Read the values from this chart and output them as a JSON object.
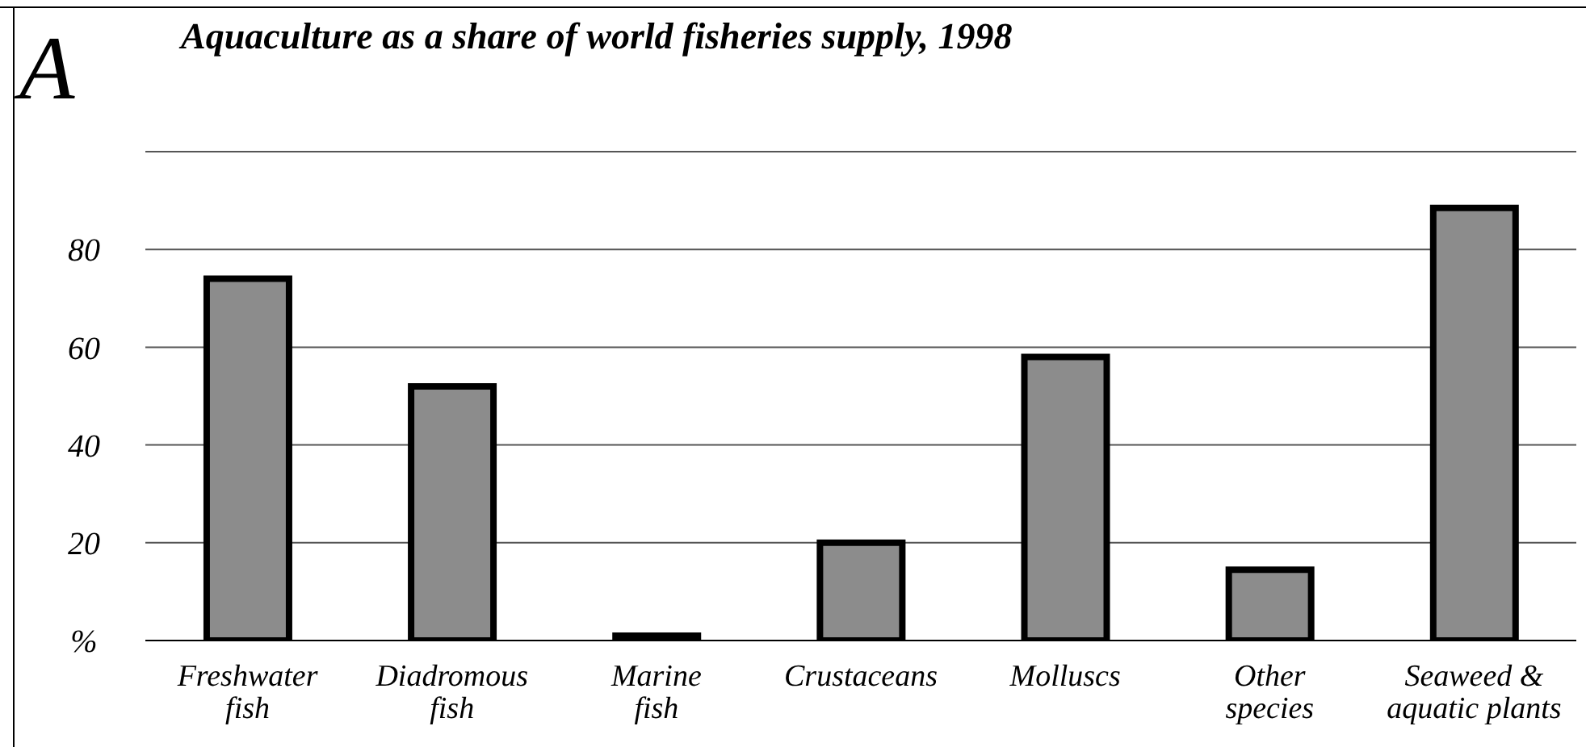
{
  "chart_data": {
    "type": "bar",
    "title": "Aquaculture as a share of world fisheries supply, 1998",
    "annotations": [
      "A"
    ],
    "categories": [
      "Freshwater fish",
      "Diadromous fish",
      "Marine fish",
      "Crustaceans",
      "Molluscs",
      "Other species",
      "Seaweed & aquatic plants"
    ],
    "values": [
      74,
      52,
      1,
      20,
      58,
      14.5,
      88.5
    ],
    "color": "#8c8c8c",
    "ylim": [
      0,
      100
    ],
    "yticks": [
      {
        "value": 0,
        "label": "%"
      },
      20,
      40,
      60,
      80,
      {
        "value": 100,
        "label": null
      }
    ],
    "grid": "y"
  }
}
